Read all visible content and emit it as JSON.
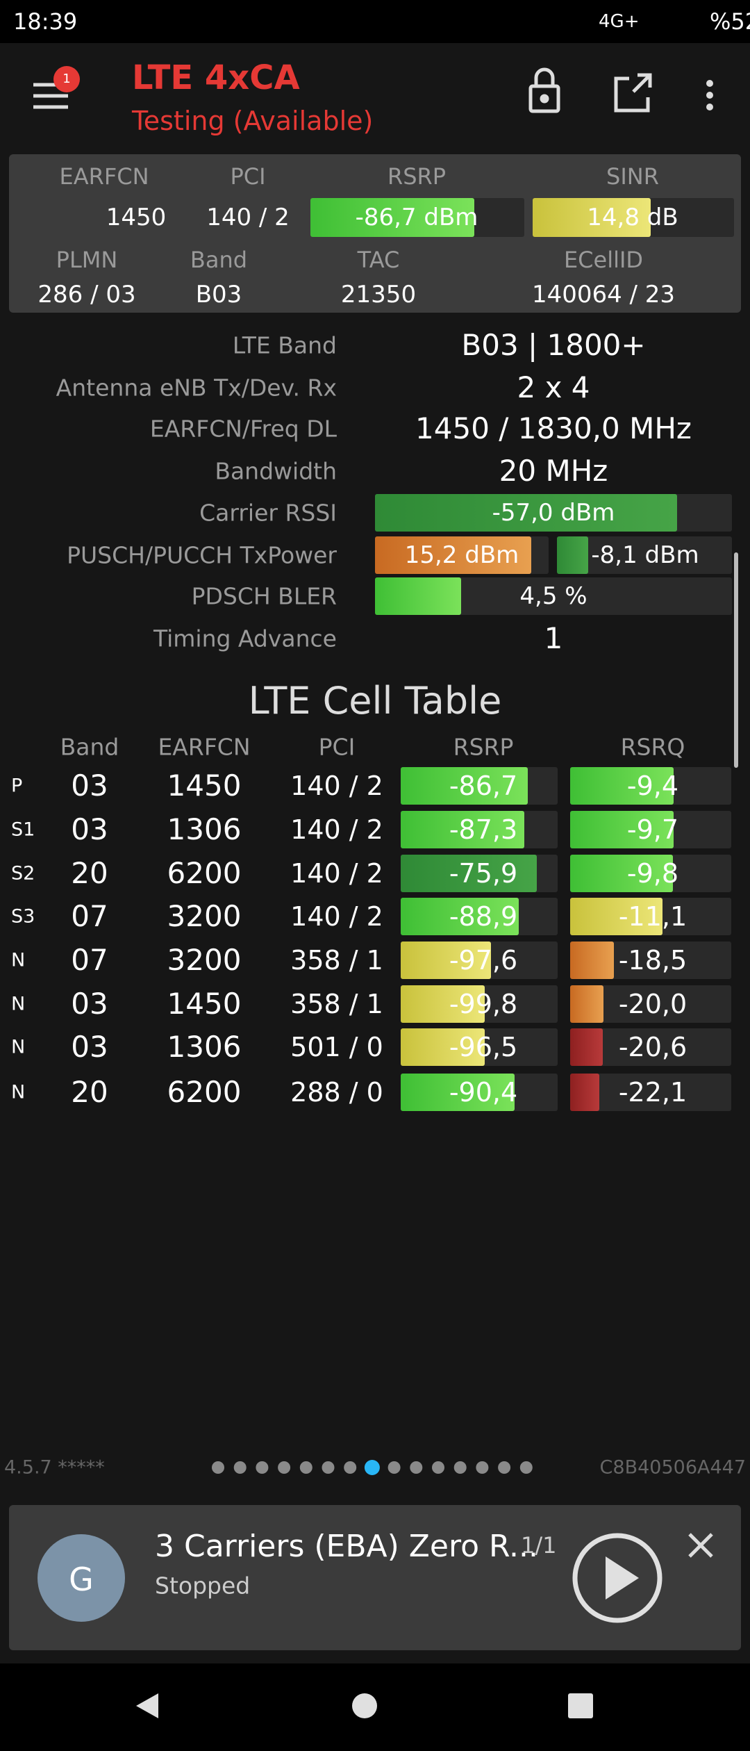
{
  "status_bar": {
    "time": "18:39",
    "network": "4G+",
    "battery": "%52"
  },
  "header": {
    "title": "LTE 4xCA",
    "subtitle": "Testing (Available)",
    "badge": "1"
  },
  "summary": {
    "row1": {
      "labels": [
        "EARFCN",
        "PCI",
        "RSRP",
        "SINR"
      ],
      "values": [
        "1450",
        "140 / 2",
        "-86,7 dBm",
        "14,8 dB"
      ]
    },
    "row2": {
      "labels": [
        "PLMN",
        "Band",
        "TAC",
        "ECellID"
      ],
      "values": [
        "286 / 03",
        "B03",
        "21350",
        "140064 / 23"
      ]
    }
  },
  "details": [
    {
      "label": "LTE Band",
      "value": "B03 | 1800+"
    },
    {
      "label": "Antenna eNB Tx/Dev. Rx",
      "value": "2 x 4"
    },
    {
      "label": "EARFCN/Freq DL",
      "value": "1450 / 1830,0 MHz"
    },
    {
      "label": "Bandwidth",
      "value": "20 MHz"
    },
    {
      "label": "Carrier RSSI",
      "value": "-57,0 dBm"
    },
    {
      "label": "PUSCH/PUCCH TxPower",
      "values": [
        "15,2 dBm",
        "-8,1 dBm"
      ]
    },
    {
      "label": "PDSCH BLER",
      "value": "4,5 %"
    },
    {
      "label": "Timing Advance",
      "value": "1"
    }
  ],
  "cell_table": {
    "title": "LTE Cell Table",
    "columns": [
      "Band",
      "EARFCN",
      "PCI",
      "RSRP",
      "RSRQ"
    ],
    "rows": [
      [
        "P",
        "03",
        "1450",
        "140 / 2",
        "-86,7",
        "-9,4"
      ],
      [
        "S1",
        "03",
        "1306",
        "140 / 2",
        "-87,3",
        "-9,7"
      ],
      [
        "S2",
        "20",
        "6200",
        "140 / 2",
        "-75,9",
        "-9,8"
      ],
      [
        "S3",
        "07",
        "3200",
        "140 / 2",
        "-88,9",
        "-11,1"
      ],
      [
        "N",
        "07",
        "3200",
        "358 / 1",
        "-97,6",
        "-18,5"
      ],
      [
        "N",
        "03",
        "1450",
        "358 / 1",
        "-99,8",
        "-20,0"
      ],
      [
        "N",
        "03",
        "1306",
        "501 / 0",
        "-96,5",
        "-20,6"
      ],
      [
        "N",
        "20",
        "6200",
        "288 / 0",
        "-90,4",
        "-22,1"
      ]
    ]
  },
  "footer": {
    "version": "4.5.7 *****",
    "device_id": "C8B40506A447"
  },
  "notification": {
    "avatar": "G",
    "title": "3 Carriers (EBA) Zero R...",
    "counter": "1/1",
    "status": "Stopped"
  }
}
